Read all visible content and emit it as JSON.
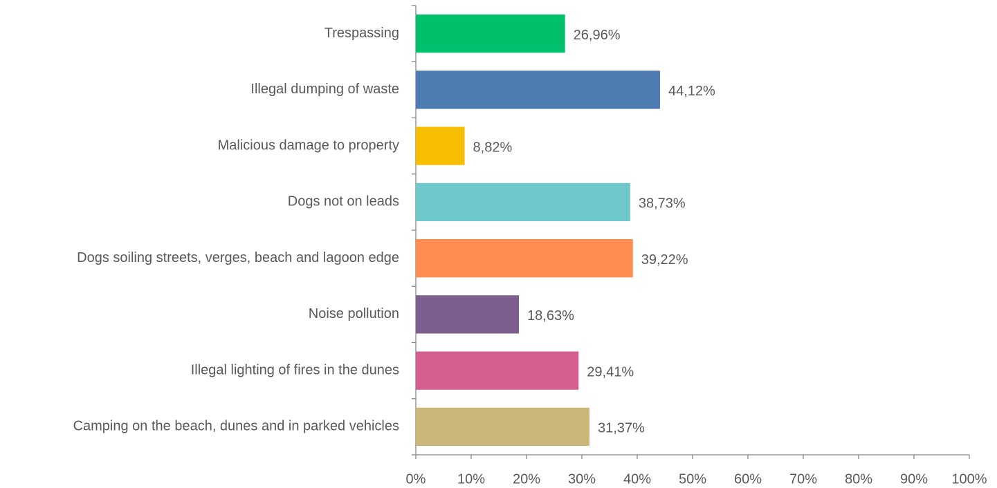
{
  "chart_data": {
    "type": "bar",
    "orientation": "horizontal",
    "categories": [
      "Trespassing",
      "Illegal dumping of waste",
      "Malicious damage to property",
      "Dogs not on leads",
      "Dogs soiling streets, verges, beach and lagoon edge",
      "Noise pollution",
      "Illegal lighting of fires in the dunes",
      "Camping on the beach, dunes and in parked vehicles"
    ],
    "values": [
      26.96,
      44.12,
      8.82,
      38.73,
      39.22,
      18.63,
      29.41,
      31.37
    ],
    "value_labels": [
      "26,96%",
      "44,12%",
      "8,82%",
      "38,73%",
      "39,22%",
      "18,63%",
      "29,41%",
      "31,37%"
    ],
    "colors": [
      "#00c06b",
      "#4f7bb3",
      "#f7be00",
      "#6ec8cc",
      "#ff8c50",
      "#7d5f8f",
      "#d45f8e",
      "#c9b87a"
    ],
    "xlim": [
      0,
      100
    ],
    "xticks": [
      {
        "value": 0,
        "label": "0%"
      },
      {
        "value": 10,
        "label": "10%"
      },
      {
        "value": 20,
        "label": "20%"
      },
      {
        "value": 30,
        "label": "30%"
      },
      {
        "value": 40,
        "label": "40%"
      },
      {
        "value": 50,
        "label": "50%"
      },
      {
        "value": 60,
        "label": "60%"
      },
      {
        "value": 70,
        "label": "70%"
      },
      {
        "value": 80,
        "label": "80%"
      },
      {
        "value": 90,
        "label": "90%"
      },
      {
        "value": 100,
        "label": "100%"
      }
    ],
    "grid": false
  }
}
